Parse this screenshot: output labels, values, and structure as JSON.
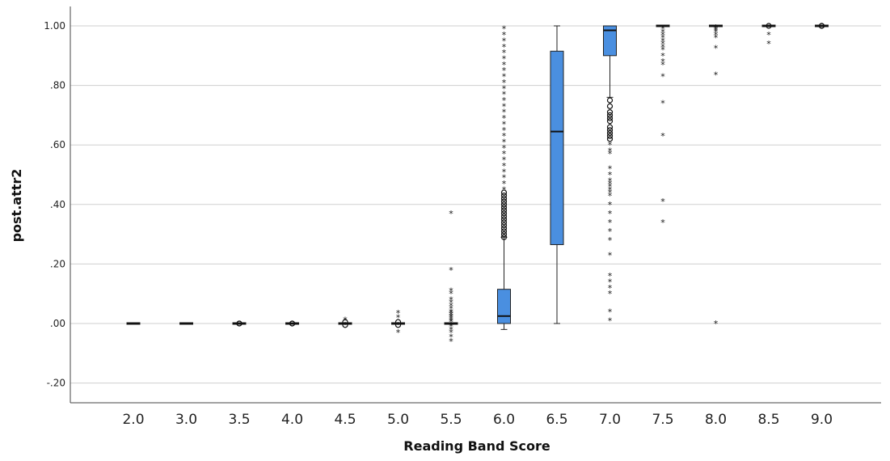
{
  "chart_data": {
    "type": "boxplot",
    "title": "",
    "xlabel": "Reading Band Score",
    "ylabel": "post.attr2",
    "ylim": [
      -0.25,
      1.07
    ],
    "yticks": [
      1.0,
      0.8,
      0.6,
      0.4,
      0.2,
      0.0,
      -0.2
    ],
    "ytick_labels": [
      "1.00",
      ".80",
      ".60",
      ".40",
      ".20",
      ".00",
      "-.20"
    ],
    "grid": true,
    "box_color": "#4a8fe0",
    "categories": [
      "2.0",
      "3.0",
      "3.5",
      "4.0",
      "4.5",
      "5.0",
      "5.5",
      "6.0",
      "6.5",
      "7.0",
      "7.5",
      "8.0",
      "8.5",
      "9.0"
    ],
    "boxes": [
      {
        "category": "2.0",
        "whisker_low": 0.0,
        "q1": 0.0,
        "median": 0.0,
        "q3": 0.0,
        "whisker_high": 0.0,
        "outliers": [],
        "extremes": []
      },
      {
        "category": "3.0",
        "whisker_low": 0.0,
        "q1": 0.0,
        "median": 0.0,
        "q3": 0.0,
        "whisker_high": 0.0,
        "outliers": [],
        "extremes": []
      },
      {
        "category": "3.5",
        "whisker_low": 0.0,
        "q1": 0.0,
        "median": 0.0,
        "q3": 0.0,
        "whisker_high": 0.0,
        "outliers": [
          0.0,
          0.0
        ],
        "extremes": []
      },
      {
        "category": "4.0",
        "whisker_low": 0.0,
        "q1": 0.0,
        "median": 0.0,
        "q3": 0.0,
        "whisker_high": 0.0,
        "outliers": [
          0.0,
          0.0
        ],
        "extremes": []
      },
      {
        "category": "4.5",
        "whisker_low": 0.0,
        "q1": 0.0,
        "median": 0.0,
        "q3": 0.0,
        "whisker_high": 0.0,
        "outliers": [
          0.005,
          -0.005
        ],
        "extremes": [
          0.012
        ]
      },
      {
        "category": "5.0",
        "whisker_low": 0.0,
        "q1": 0.0,
        "median": 0.0,
        "q3": 0.0,
        "whisker_high": 0.0,
        "outliers": [
          0.005,
          -0.005
        ],
        "extremes": [
          0.035,
          0.02,
          -0.03
        ]
      },
      {
        "category": "5.5",
        "whisker_low": 0.0,
        "q1": 0.0,
        "median": 0.0,
        "q3": 0.0,
        "whisker_high": 0.0,
        "outliers": [],
        "extremes": [
          0.37,
          0.18,
          0.11,
          0.1,
          0.08,
          0.07,
          0.06,
          0.05,
          0.04,
          0.035,
          0.03,
          0.025,
          0.02,
          0.015,
          0.01,
          0.005,
          -0.005,
          -0.01,
          -0.02,
          -0.03,
          -0.045,
          -0.06
        ]
      },
      {
        "category": "6.0",
        "whisker_low": -0.02,
        "q1": 0.0,
        "median": 0.025,
        "q3": 0.115,
        "whisker_high": 0.29,
        "outliers": [
          0.29,
          0.3,
          0.31,
          0.32,
          0.33,
          0.34,
          0.35,
          0.36,
          0.37,
          0.38,
          0.39,
          0.4,
          0.41,
          0.42,
          0.43,
          0.44
        ],
        "extremes": [
          0.45,
          0.47,
          0.49,
          0.51,
          0.53,
          0.55,
          0.57,
          0.59,
          0.61,
          0.63,
          0.65,
          0.67,
          0.69,
          0.71,
          0.73,
          0.75,
          0.77,
          0.79,
          0.81,
          0.83,
          0.85,
          0.87,
          0.89,
          0.91,
          0.93,
          0.95,
          0.97,
          0.99
        ]
      },
      {
        "category": "6.5",
        "whisker_low": 0.0,
        "q1": 0.265,
        "median": 0.645,
        "q3": 0.915,
        "whisker_high": 1.0,
        "outliers": [],
        "extremes": []
      },
      {
        "category": "7.0",
        "whisker_low": 0.76,
        "q1": 0.9,
        "median": 0.985,
        "q3": 1.0,
        "whisker_high": 1.0,
        "outliers": [
          0.75,
          0.73,
          0.71,
          0.7,
          0.69,
          0.68,
          0.66,
          0.65,
          0.64,
          0.63,
          0.62
        ],
        "extremes": [
          0.6,
          0.58,
          0.57,
          0.52,
          0.5,
          0.48,
          0.47,
          0.46,
          0.45,
          0.44,
          0.43,
          0.4,
          0.37,
          0.34,
          0.31,
          0.28,
          0.23,
          0.16,
          0.14,
          0.12,
          0.1,
          0.04,
          0.01
        ]
      },
      {
        "category": "7.5",
        "whisker_low": 1.0,
        "q1": 1.0,
        "median": 1.0,
        "q3": 1.0,
        "whisker_high": 1.0,
        "outliers": [],
        "extremes": [
          0.99,
          0.98,
          0.97,
          0.96,
          0.95,
          0.94,
          0.93,
          0.92,
          0.9,
          0.88,
          0.87,
          0.83,
          0.74,
          0.63,
          0.41,
          0.34
        ]
      },
      {
        "category": "8.0",
        "whisker_low": 1.0,
        "q1": 1.0,
        "median": 1.0,
        "q3": 1.0,
        "whisker_high": 1.0,
        "outliers": [],
        "extremes": [
          0.995,
          0.99,
          0.985,
          0.98,
          0.97,
          0.96,
          0.925,
          0.835,
          0.0
        ]
      },
      {
        "category": "8.5",
        "whisker_low": 1.0,
        "q1": 1.0,
        "median": 1.0,
        "q3": 1.0,
        "whisker_high": 1.0,
        "outliers": [
          1.0
        ],
        "extremes": [
          0.97,
          0.94
        ]
      },
      {
        "category": "9.0",
        "whisker_low": 1.0,
        "q1": 1.0,
        "median": 1.0,
        "q3": 1.0,
        "whisker_high": 1.0,
        "outliers": [
          1.0,
          1.0
        ],
        "extremes": []
      }
    ]
  }
}
